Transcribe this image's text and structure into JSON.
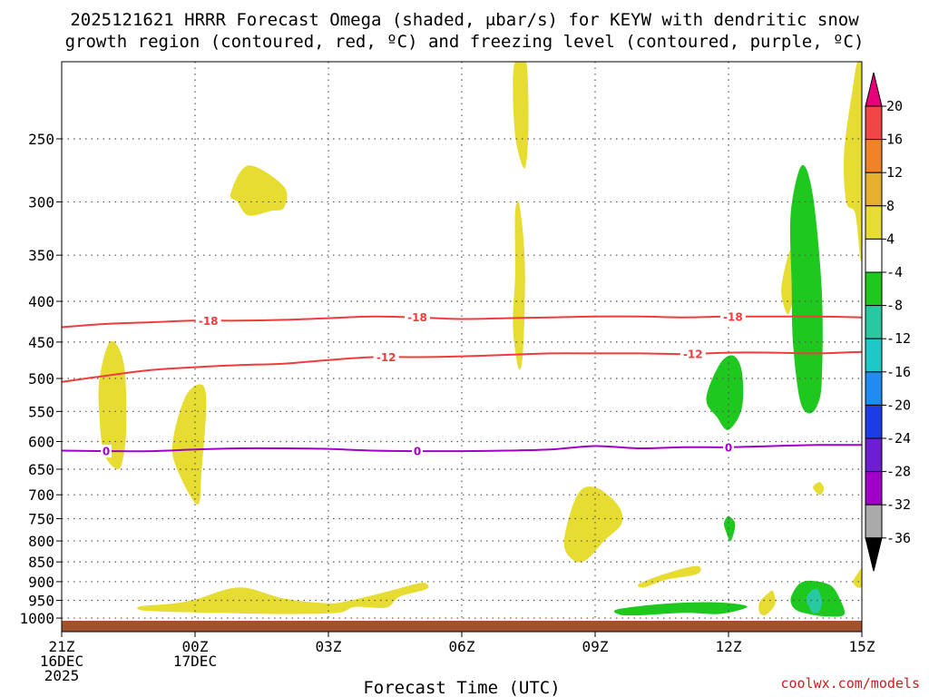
{
  "title": {
    "line1": "2025121621 HRRR Forecast Omega (shaded, μbar/s) for KEYW with dendritic snow",
    "line2": "growth region (contoured, red, ºC) and freezing level (contoured, purple, ºC)"
  },
  "credit": "coolwx.com/models",
  "colors": {
    "positive": "#e6dc32",
    "neg4": "#1ec81e",
    "neg8": "#28c8a0",
    "dsg_contour": "#f03c3c",
    "freezing_contour": "#a000c8",
    "ground": "#a0522d",
    "grid": "#555555",
    "credit": "#c81e1e"
  },
  "chart_data": {
    "type": "time-height contour",
    "xlabel": "Forecast Time (UTC)",
    "x_ticks": [
      {
        "hour": 0,
        "lines": [
          "21Z",
          "16DEC",
          "2025"
        ]
      },
      {
        "hour": 3,
        "lines": [
          "00Z",
          "17DEC"
        ]
      },
      {
        "hour": 6,
        "lines": [
          "03Z"
        ]
      },
      {
        "hour": 9,
        "lines": [
          "06Z"
        ]
      },
      {
        "hour": 12,
        "lines": [
          "09Z"
        ]
      },
      {
        "hour": 15,
        "lines": [
          "12Z"
        ]
      },
      {
        "hour": 18,
        "lines": [
          "15Z"
        ]
      }
    ],
    "x_range_hours": [
      0,
      18
    ],
    "y_axis": "pressure (hPa), log scale",
    "y_range": [
      200,
      1040
    ],
    "y_ticks": [
      250,
      300,
      350,
      400,
      450,
      500,
      550,
      600,
      650,
      700,
      750,
      800,
      850,
      900,
      950,
      1000
    ],
    "grid": true,
    "colorbar": {
      "labels": [
        "20",
        "16",
        "12",
        "8",
        "4",
        "-4",
        "-8",
        "-12",
        "-16",
        "-20",
        "-24",
        "-28",
        "-32",
        "-36"
      ],
      "bins": [
        {
          "range": [
            20,
            24
          ],
          "color": "#e6007a"
        },
        {
          "range": [
            16,
            20
          ],
          "color": "#f04646"
        },
        {
          "range": [
            12,
            16
          ],
          "color": "#f08228"
        },
        {
          "range": [
            8,
            12
          ],
          "color": "#e6af2d"
        },
        {
          "range": [
            4,
            8
          ],
          "color": "#e6dc32"
        },
        {
          "range": [
            -4,
            4
          ],
          "color": "#ffffff"
        },
        {
          "range": [
            -8,
            -4
          ],
          "color": "#1ec81e"
        },
        {
          "range": [
            -12,
            -8
          ],
          "color": "#28c8a0"
        },
        {
          "range": [
            -16,
            -12
          ],
          "color": "#1ec8c8"
        },
        {
          "range": [
            -20,
            -16
          ],
          "color": "#1e8cf0"
        },
        {
          "range": [
            -24,
            -20
          ],
          "color": "#1e3ce6"
        },
        {
          "range": [
            -28,
            -24
          ],
          "color": "#6e1ed2"
        },
        {
          "range": [
            -32,
            -28
          ],
          "color": "#a000c8"
        },
        {
          "range": [
            -36,
            -32
          ],
          "color": "#aaaaaa"
        },
        {
          "range": [
            -40,
            -36
          ],
          "color": "#000000"
        }
      ]
    },
    "contours": [
      {
        "value": -18,
        "label": "-18",
        "color": "#f03c3c",
        "points": [
          [
            0,
            431
          ],
          [
            1,
            427
          ],
          [
            2,
            425
          ],
          [
            3,
            423
          ],
          [
            4,
            423
          ],
          [
            5,
            422
          ],
          [
            6,
            420
          ],
          [
            7,
            418
          ],
          [
            8,
            419
          ],
          [
            9,
            421
          ],
          [
            10,
            420
          ],
          [
            11,
            419
          ],
          [
            12,
            418
          ],
          [
            13,
            418
          ],
          [
            14,
            419
          ],
          [
            15,
            418
          ],
          [
            16,
            418
          ],
          [
            17,
            418
          ],
          [
            18,
            419
          ]
        ],
        "label_hours": [
          3.3,
          8,
          15.1
        ]
      },
      {
        "value": -12,
        "label": "-12",
        "color": "#f03c3c",
        "points": [
          [
            0,
            505
          ],
          [
            1,
            496
          ],
          [
            2,
            488
          ],
          [
            3,
            484
          ],
          [
            4,
            481
          ],
          [
            5,
            479
          ],
          [
            6,
            474
          ],
          [
            7,
            470
          ],
          [
            8,
            470
          ],
          [
            9,
            469
          ],
          [
            10,
            467
          ],
          [
            11,
            465
          ],
          [
            12,
            465
          ],
          [
            13,
            465
          ],
          [
            14,
            466
          ],
          [
            15,
            464
          ],
          [
            16,
            464
          ],
          [
            17,
            465
          ],
          [
            18,
            463
          ]
        ],
        "label_hours": [
          7.3,
          14.2
        ]
      },
      {
        "value": 0,
        "label": "0",
        "color": "#a000c8",
        "points": [
          [
            0,
            616
          ],
          [
            1,
            617
          ],
          [
            2,
            617
          ],
          [
            3,
            614
          ],
          [
            4,
            612
          ],
          [
            5,
            612
          ],
          [
            6,
            613
          ],
          [
            7,
            616
          ],
          [
            8,
            617
          ],
          [
            9,
            617
          ],
          [
            10,
            616
          ],
          [
            11,
            614
          ],
          [
            12,
            608
          ],
          [
            13,
            612
          ],
          [
            14,
            610
          ],
          [
            15,
            610
          ],
          [
            16,
            608
          ],
          [
            17,
            606
          ],
          [
            18,
            606
          ]
        ],
        "label_hours": [
          1,
          8,
          15
        ]
      }
    ],
    "regions": [
      {
        "cls": 4,
        "points": [
          [
            10.2,
            200
          ],
          [
            10.45,
            200
          ],
          [
            10.5,
            240
          ],
          [
            10.42,
            272
          ],
          [
            10.22,
            252
          ],
          [
            10.15,
            220
          ]
        ]
      },
      {
        "cls": 4,
        "points": [
          [
            10.2,
            310
          ],
          [
            10.3,
            303
          ],
          [
            10.42,
            360
          ],
          [
            10.38,
            460
          ],
          [
            10.28,
            486
          ],
          [
            10.15,
            430
          ],
          [
            10.2,
            370
          ]
        ]
      },
      {
        "cls": 4,
        "points": [
          [
            3.8,
            293
          ],
          [
            4.2,
            270
          ],
          [
            5,
            287
          ],
          [
            5.0,
            305
          ],
          [
            4.7,
            308
          ],
          [
            4.2,
            312
          ],
          [
            3.95,
            300
          ]
        ]
      },
      {
        "cls": 4,
        "points": [
          [
            0.85,
            500
          ],
          [
            1.1,
            449
          ],
          [
            1.4,
            480
          ],
          [
            1.45,
            580
          ],
          [
            1.35,
            640
          ],
          [
            1.2,
            648
          ],
          [
            0.95,
            620
          ],
          [
            0.85,
            560
          ]
        ]
      },
      {
        "cls": 4,
        "points": [
          [
            2.52,
            590
          ],
          [
            2.8,
            525
          ],
          [
            3.15,
            509
          ],
          [
            3.25,
            540
          ],
          [
            3.15,
            650
          ],
          [
            3.05,
            720
          ],
          [
            2.55,
            640
          ]
        ]
      },
      {
        "cls": 4,
        "points": [
          [
            11.3,
            800
          ],
          [
            11.6,
            700
          ],
          [
            12,
            685
          ],
          [
            12.5,
            720
          ],
          [
            12.6,
            760
          ],
          [
            12.2,
            800
          ],
          [
            11.8,
            845
          ],
          [
            11.5,
            845
          ]
        ]
      },
      {
        "cls": 4,
        "points": [
          [
            16.2,
            380
          ],
          [
            16.4,
            345
          ],
          [
            16.48,
            385
          ],
          [
            16.35,
            415
          ],
          [
            16.22,
            400
          ]
        ]
      },
      {
        "cls": 4,
        "points": [
          [
            17.6,
            260
          ],
          [
            17.8,
            215
          ],
          [
            17.9,
            200
          ],
          [
            18,
            200
          ],
          [
            18,
            350
          ],
          [
            17.85,
            310
          ],
          [
            17.65,
            300
          ]
        ]
      },
      {
        "cls": 4,
        "points": [
          [
            16.9,
            685
          ],
          [
            17.05,
            675
          ],
          [
            17.15,
            688
          ],
          [
            17.05,
            700
          ]
        ]
      },
      {
        "cls": 4,
        "points": [
          [
            17.8,
            900
          ],
          [
            17.9,
            880
          ],
          [
            18,
            868
          ],
          [
            18,
            910
          ],
          [
            17.9,
            915
          ]
        ]
      },
      {
        "cls": 4,
        "points": [
          [
            1.85,
            965
          ],
          [
            2.4,
            960
          ],
          [
            3,
            948
          ],
          [
            4,
            915
          ],
          [
            5,
            945
          ],
          [
            6,
            958
          ],
          [
            6.5,
            950
          ],
          [
            7.2,
            930
          ],
          [
            8,
            905
          ],
          [
            8.2,
            905
          ],
          [
            8.2,
            920
          ],
          [
            7.6,
            940
          ],
          [
            7.3,
            970
          ],
          [
            6.6,
            968
          ],
          [
            6.2,
            985
          ],
          [
            5,
            988
          ],
          [
            3.5,
            985
          ],
          [
            2,
            980
          ],
          [
            1.7,
            972
          ]
        ]
      },
      {
        "cls": 4,
        "points": [
          [
            13,
            905
          ],
          [
            13.7,
            875
          ],
          [
            14.3,
            860
          ],
          [
            14.3,
            880
          ],
          [
            13.6,
            895
          ],
          [
            13.1,
            915
          ]
        ]
      },
      {
        "cls": 4,
        "points": [
          [
            15.7,
            955
          ],
          [
            15.9,
            930
          ],
          [
            16,
            925
          ],
          [
            16.05,
            960
          ],
          [
            15.85,
            990
          ],
          [
            15.7,
            985
          ]
        ]
      },
      {
        "cls": -4,
        "points": [
          [
            14.5,
            530
          ],
          [
            14.8,
            480
          ],
          [
            15.1,
            468
          ],
          [
            15.3,
            490
          ],
          [
            15.3,
            545
          ],
          [
            15.0,
            580
          ],
          [
            14.75,
            560
          ]
        ]
      },
      {
        "cls": -4,
        "points": [
          [
            16.4,
            310
          ],
          [
            16.65,
            270
          ],
          [
            16.9,
            295
          ],
          [
            17.1,
            390
          ],
          [
            17.1,
            500
          ],
          [
            17.0,
            540
          ],
          [
            16.8,
            553
          ],
          [
            16.6,
            530
          ],
          [
            16.45,
            450
          ],
          [
            16.42,
            380
          ]
        ]
      },
      {
        "cls": -4,
        "points": [
          [
            14.9,
            760
          ],
          [
            15.0,
            745
          ],
          [
            15.15,
            762
          ],
          [
            15.05,
            800
          ],
          [
            14.95,
            780
          ]
        ]
      },
      {
        "cls": -4,
        "points": [
          [
            12.5,
            975
          ],
          [
            13.5,
            960
          ],
          [
            14.5,
            955
          ],
          [
            15.2,
            960
          ],
          [
            15.4,
            970
          ],
          [
            14.8,
            988
          ],
          [
            14,
            985
          ],
          [
            13,
            992
          ],
          [
            12.55,
            990
          ]
        ]
      },
      {
        "cls": -4,
        "points": [
          [
            16.4,
            945
          ],
          [
            16.6,
            905
          ],
          [
            16.9,
            898
          ],
          [
            17.3,
            910
          ],
          [
            17.5,
            945
          ],
          [
            17.6,
            990
          ],
          [
            17.2,
            995
          ],
          [
            16.8,
            988
          ],
          [
            16.5,
            975
          ]
        ]
      },
      {
        "cls": -8,
        "points": [
          [
            16.75,
            945
          ],
          [
            16.85,
            925
          ],
          [
            17,
            920
          ],
          [
            17.1,
            950
          ],
          [
            17.05,
            980
          ],
          [
            16.9,
            985
          ],
          [
            16.8,
            965
          ]
        ]
      }
    ]
  }
}
